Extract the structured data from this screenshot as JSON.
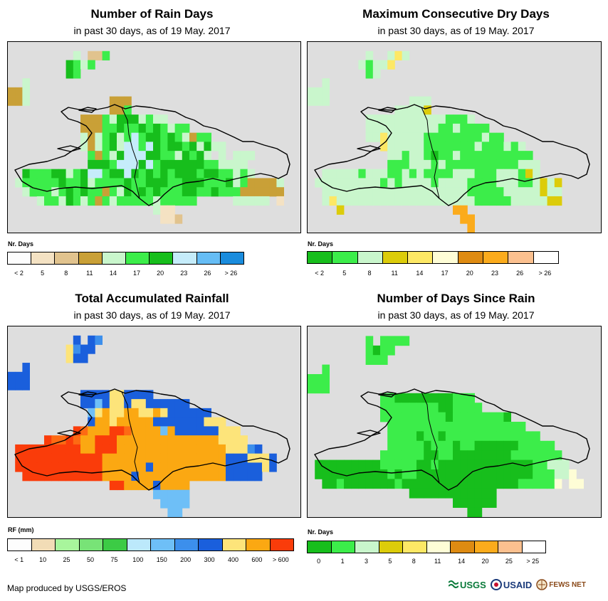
{
  "panels": [
    {
      "title": "Number of Rain Days",
      "subtitle": "in past 30 days, as of 19 May. 2017",
      "legend_title": "Nr. Days",
      "legend_colors": [
        "#fdfdfd",
        "#f4e2c3",
        "#e1c38e",
        "#c9a037",
        "#c9f6cc",
        "#3ced4a",
        "#17be1c",
        "#c5ecfa",
        "#66bdf5",
        "#1a8cdd"
      ],
      "legend_ticks": [
        "< 2",
        "5",
        "8",
        "11",
        "14",
        "17",
        "20",
        "23",
        "26",
        "> 26"
      ],
      "palette": {
        "a": "#c9a037",
        "b": "#e1c38e",
        "c": "#f4e2c3",
        "l": "#c9f6cc",
        "g": "#3ced4a",
        "G": "#17be1c",
        "s": "#c5ecfa",
        "m": "#66bdf5"
      },
      "grid": [
        "............................................",
        ".........l.bbg..............................",
        "........Gglg................................",
        "........Gg..................................",
        "..l.........................................",
        "aal..........................................",
        "aal...........aaa............................",
        "..............aag.............................",
        "..........aaaglGGGlgll......................",
        "..........aaaggGggGgGglgg...................",
        "..........lalgGlgsgGGgGglagg..................",
        "..........lalgGlssgsGgGGgGlGll................",
        "...........gaglGsssGGgglGgGl.l.lll.............",
        "...........GGGgsssGsgGGGGGGggllll..............",
        "..GgggGGlgGssgGGsGgGgGgGGGgGGgglgl.............",
        ".lgggggGggGlggggGggGGGggGGGgggGlgaaaal.........",
        "..lggglgGgGggaglGgGgGgggGGggGgggaaaaaa.........",
        "....lgglGglgaglggggglggggg.....lllll.c.........",
        "....................lcc.......................",
        ".....................ccb......................",
        "........................................."
      ]
    },
    {
      "title": "Maximum Consecutive Dry Days",
      "subtitle": "in past 30 days, as of 19 May. 2017",
      "legend_title": "Nr. Days",
      "legend_colors": [
        "#17be1c",
        "#3ced4a",
        "#c9f6cc",
        "#dccc0a",
        "#fde865",
        "#fefdd6",
        "#de8b12",
        "#fbab1c",
        "#fbc08f",
        "#ffffff"
      ],
      "legend_ticks": [
        "< 2",
        "5",
        "8",
        "11",
        "14",
        "17",
        "20",
        "23",
        "26",
        "> 26"
      ],
      "palette": {
        "l": "#c9f6cc",
        "g": "#3ced4a",
        "G": "#17be1c",
        "y": "#dccc0a",
        "Y": "#fde865",
        "o": "#de8b12",
        "O": "#fbab1c",
        "p": "#fefdd6"
      },
      "grid": [
        "............................................",
        "........l..lYl..............................",
        ".......lgllY.................................",
        "........gl....................................",
        "..l...........................................",
        "lll...........................................",
        "lll...........lll............................",
        "............lllly.............................",
        "........lllllllllllgggl........................",
        "........llllllllllgglgggg......................",
        "........llYlllllgggggggglgg....................",
        "..........Ylllllggggggglggglgl.................",
        "...........llgllgGgglgggggggggg................",
        "...........ggglllglgggggggggglll...............",
        "..lllllglllgglglgggglllggglllgyl...............",
        ".lllllllllglgllllgllllgggglllgglyly............",
        "..llllllllllllllllllllggggglllllyll............",
        "..lYlllllllllllllllllllggggglllllyy............",
        "....y...............OO.........................",
        ".....................OO........................",
        "......................O........................"
      ]
    },
    {
      "title": "Total Accumulated Rainfall",
      "subtitle": "in past 30 days, as of 19 May. 2017",
      "legend_title": "RF (mm)",
      "legend_colors": [
        "#fdfdfd",
        "#f2dcb6",
        "#a8f59c",
        "#78e377",
        "#3ccb45",
        "#bce9fb",
        "#6ebff7",
        "#3c8fec",
        "#1a5fdc",
        "#fde47a",
        "#fba812",
        "#fa3c0a"
      ],
      "legend_ticks": [
        "< 1",
        "10",
        "25",
        "50",
        "75",
        "100",
        "150",
        "200",
        "300",
        "400",
        "600",
        "> 600"
      ],
      "palette": {
        "B": "#1a5fdc",
        "b": "#3c8fec",
        "y": "#fde47a",
        "O": "#fba812",
        "R": "#fa3c0a",
        "r": "#fd6a13",
        "l": "#6ebff7"
      },
      "grid": [
        "............................................",
        ".........B.Bb...............................",
        "........ybBB.................................",
        "........yBB...................................",
        "..B...........................................",
        "BBB...........................................",
        "BBB..........................................",
        "..........BBBByyBBBB..........................",
        "..........BBlByyByyBBBBBB.....................",
        "...........lyOyyOOyyOyBBBBBB..................",
        "...........BOOyOOOOOBBBBBBByyy................",
        ".........RrOOORRrOOOOlOBBBBBByyy..............",
        ".....RrrRrOORRROOOOOOOOOOOOOOyyyy.............",
        ".RRRRRRRRROORRROOOOOOOOOOOOOOOyyybB...........",
        ".RRRRRRRRRRRROOOOOOOOOOOOOOOOOBBByyyB.........",
        ".RRRRRRRRRRRROOOOOOBOOOOOOOOOOBBBBByB.........",
        "..RRRRRRRRRRROOOOBOOOOOOOOOOOOBBBBB...........",
        "..............RROOOOBOOOO.....................",
        "....................lllll.....................",
        ".....................llll.....................",
        "......................ll......................"
      ]
    },
    {
      "title": "Number of Days Since Rain",
      "subtitle": "in past 30 days, as of 19 May. 2017",
      "legend_title": "Nr. Days",
      "legend_colors": [
        "#17be1c",
        "#3ced4a",
        "#c9f6cc",
        "#dccc0a",
        "#fde865",
        "#fefdd6",
        "#de8b12",
        "#fbab1c",
        "#fbc08f",
        "#ffffff"
      ],
      "legend_ticks": [
        "0",
        "1",
        "3",
        "5",
        "8",
        "11",
        "14",
        "20",
        "25",
        "> 25"
      ],
      "palette": {
        "g": "#3ced4a",
        "G": "#17be1c",
        "l": "#c9f6cc",
        "p": "#fefdd6"
      },
      "grid": [
        "............................................",
        "........g.gggg...............................",
        "........gGgg..................................",
        "........ggg...................................",
        "..g...........................................",
        "ggg...........................................",
        "ggg...........................................",
        "..........ggGGGGGGGGggg........................",
        "..........ggggggggGGgggg.......................",
        "..........gggggggggGgggggggG...................",
        "...........ggggggggggggggggggg.................",
        "...........ggggGggGggggggggggggg...............",
        "...........gggggGgggGggGGGGGGggggg.............",
        "..........ggggggGGggGGGGGGGGggggggg............",
        ".GGGGGGGGGgggggGGgGGGGGGGGGGGGGgglll...........",
        ".GGGGGGGGGGgGggGGGGGGGGGGGGGGGGgggllp..........",
        "..GGgGGGGGGGgGGGGGGGGGGGGGGGGgggggp.pp.........",
        "..............GGGGGGGGGGGG.....................",
        "....................GGGGGG.....................",
        "......................GG......................."
      ]
    }
  ],
  "footer": "Map produced by USGS/EROS",
  "logos": {
    "usgs": "USGS",
    "usaid": "USAID",
    "fewsnet": "FEWS NET"
  }
}
